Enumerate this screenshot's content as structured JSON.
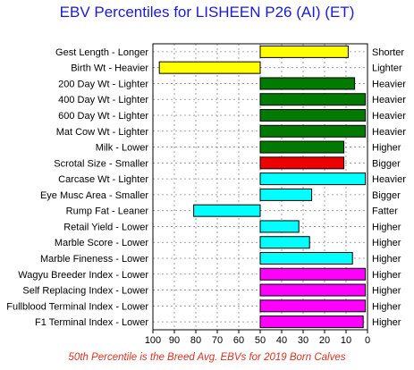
{
  "chart_data": {
    "type": "bar",
    "title": "EBV Percentiles for LISHEEN P26 (AI) (ET)",
    "footer": "50th Percentile is the Breed Avg. EBVs for 2019 Born Calves",
    "xlim": [
      100,
      0
    ],
    "x_ticks": [
      "100",
      "90",
      "80",
      "70",
      "60",
      "50",
      "40",
      "30",
      "20",
      "10",
      "0"
    ],
    "grid": true,
    "reference": 50,
    "traits": [
      {
        "label": "Gest Length - Longer",
        "right": "Shorter",
        "value": 9,
        "color": "#ffff00"
      },
      {
        "label": "Birth Wt - Heavier",
        "right": "Lighter",
        "value": 97,
        "color": "#ffff00"
      },
      {
        "label": "200 Day Wt - Lighter",
        "right": "Heavier",
        "value": 6,
        "color": "#007a00"
      },
      {
        "label": "400 Day Wt - Lighter",
        "right": "Heavier",
        "value": 1,
        "color": "#007a00"
      },
      {
        "label": "600 Day Wt - Lighter",
        "right": "Heavier",
        "value": 1,
        "color": "#007a00"
      },
      {
        "label": "Mat Cow Wt - Lighter",
        "right": "Heavier",
        "value": 1,
        "color": "#007a00"
      },
      {
        "label": "Milk - Lower",
        "right": "Higher",
        "value": 11,
        "color": "#007a00"
      },
      {
        "label": "Scrotal Size - Smaller",
        "right": "Bigger",
        "value": 11,
        "color": "#ee0000"
      },
      {
        "label": "Carcase Wt - Lighter",
        "right": "Heavier",
        "value": 1,
        "color": "#00ffff"
      },
      {
        "label": "Eye Musc Area - Smaller",
        "right": "Bigger",
        "value": 26,
        "color": "#00ffff"
      },
      {
        "label": "Rump Fat - Leaner",
        "right": "Fatter",
        "value": 81,
        "color": "#00ffff"
      },
      {
        "label": "Retail Yield - Lower",
        "right": "Higher",
        "value": 32,
        "color": "#00ffff"
      },
      {
        "label": "Marble Score - Lower",
        "right": "Higher",
        "value": 27,
        "color": "#00ffff"
      },
      {
        "label": "Marble Fineness - Lower",
        "right": "Higher",
        "value": 7,
        "color": "#00ffff"
      },
      {
        "label": "Wagyu Breeder Index - Lower",
        "right": "Higher",
        "value": 1,
        "color": "#ff00ff"
      },
      {
        "label": "Self Replacing Index - Lower",
        "right": "Higher",
        "value": 1,
        "color": "#ff00ff"
      },
      {
        "label": "Fullblood Terminal Index - Lower",
        "right": "Higher",
        "value": 1,
        "color": "#ff00ff"
      },
      {
        "label": "F1 Terminal Index - Lower",
        "right": "Higher",
        "value": 2,
        "color": "#ff00ff"
      }
    ]
  }
}
